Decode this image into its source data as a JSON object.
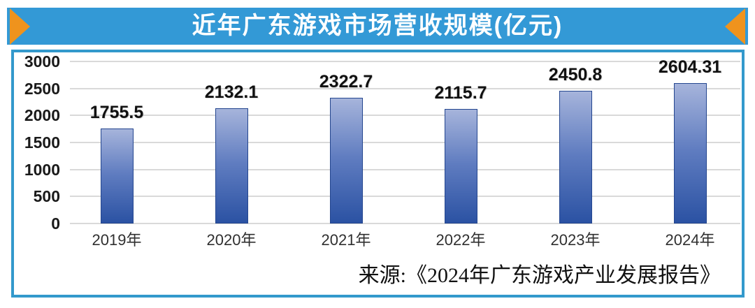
{
  "banner": {
    "title": "近年广东游戏市场营收规模(亿元)"
  },
  "colors": {
    "banner_blue": "#3399D6",
    "border_blue": "#3399CC",
    "arrow_orange": "#EF931D",
    "bar_top": "#A6B4DB",
    "bar_bottom": "#2B52A3",
    "bar_border": "#24468F",
    "gridline": "#D9D9D9",
    "title_text": "#FFFFFF",
    "label_text": "#111111"
  },
  "chart_data": {
    "type": "bar",
    "title": "近年广东游戏市场营收规模(亿元)",
    "categories": [
      "2019年",
      "2020年",
      "2021年",
      "2022年",
      "2023年",
      "2024年"
    ],
    "values": [
      1755.5,
      2132.1,
      2322.7,
      2115.7,
      2450.8,
      2604.31
    ],
    "value_labels": [
      "1755.5",
      "2132.1",
      "2322.7",
      "2115.7",
      "2450.8",
      "2604.31"
    ],
    "xlabel": "",
    "ylabel": "",
    "ylim": [
      0,
      3000
    ],
    "yticks": [
      0,
      500,
      1000,
      1500,
      2000,
      2500,
      3000
    ],
    "grid": true,
    "legend_position": "none",
    "source_note": "来源:《2024年广东游戏产业发展报告》"
  }
}
